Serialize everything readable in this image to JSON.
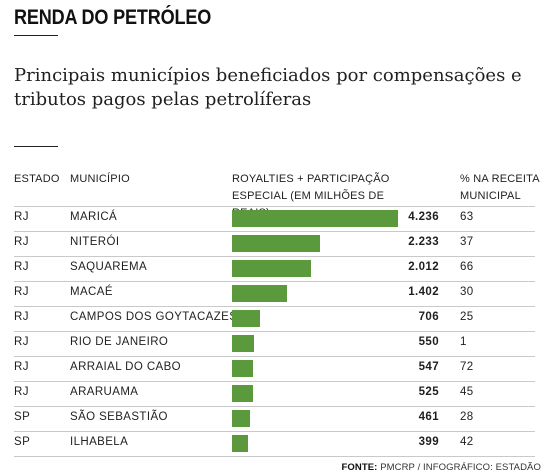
{
  "header": {
    "section_title": "RENDA DO PETRÓLEO",
    "subtitle": "Principais municípios beneficiados por compensações e tributos pagos pelas petrolíferas"
  },
  "columns": {
    "estado": "ESTADO",
    "municipio": "MUNICÍPIO",
    "royalties_line1": "ROYALTIES + PARTICIPAÇÃO",
    "royalties_line2": "ESPECIAL (EM MILHÕES DE REAIS)",
    "pct_line1": "% NA RECEITA",
    "pct_line2": "MUNICIPAL"
  },
  "chart_data": {
    "type": "bar",
    "orientation": "horizontal",
    "title": "Principais municípios beneficiados por compensações e tributos pagos pelas petrolíferas",
    "value_label": "ROYALTIES + PARTICIPAÇÃO ESPECIAL (EM MILHÕES DE REAIS)",
    "bar_color": "#5a9a3c",
    "rows": [
      {
        "estado": "RJ",
        "municipio": "MARICÁ",
        "royalties": 4236,
        "royalties_label": "4.236",
        "pct_receita": "63"
      },
      {
        "estado": "RJ",
        "municipio": "NITERÓI",
        "royalties": 2233,
        "royalties_label": "2.233",
        "pct_receita": "37"
      },
      {
        "estado": "RJ",
        "municipio": "SAQUAREMA",
        "royalties": 2012,
        "royalties_label": "2.012",
        "pct_receita": "66"
      },
      {
        "estado": "RJ",
        "municipio": "MACAÉ",
        "royalties": 1402,
        "royalties_label": "1.402",
        "pct_receita": "30"
      },
      {
        "estado": "RJ",
        "municipio": "CAMPOS DOS GOYTACAZES",
        "royalties": 706,
        "royalties_label": "706",
        "pct_receita": "25"
      },
      {
        "estado": "RJ",
        "municipio": "RIO DE JANEIRO",
        "royalties": 550,
        "royalties_label": "550",
        "pct_receita": "1"
      },
      {
        "estado": "RJ",
        "municipio": "ARRAIAL DO CABO",
        "royalties": 547,
        "royalties_label": "547",
        "pct_receita": "72"
      },
      {
        "estado": "RJ",
        "municipio": "ARARUAMA",
        "royalties": 525,
        "royalties_label": "525",
        "pct_receita": "45"
      },
      {
        "estado": "SP",
        "municipio": "SÃO SEBASTIÃO",
        "royalties": 461,
        "royalties_label": "461",
        "pct_receita": "28"
      },
      {
        "estado": "SP",
        "municipio": "ILHABELA",
        "royalties": 399,
        "royalties_label": "399",
        "pct_receita": "42"
      }
    ]
  },
  "source": {
    "label": "FONTE:",
    "text": "PMCRP / INFOGRÁFICO: ESTADÃO"
  }
}
